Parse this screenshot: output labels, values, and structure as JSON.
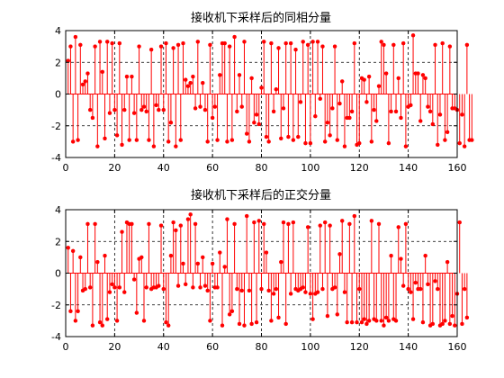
{
  "chart_data": [
    {
      "type": "stem",
      "title": "接收机下采样后的同相分量",
      "xlim": [
        0,
        160
      ],
      "ylim": [
        -4,
        4
      ],
      "xticks": [
        "0",
        "20",
        "40",
        "60",
        "80",
        "100",
        "120",
        "140",
        "160"
      ],
      "yticks": [
        "4",
        "2",
        "0",
        "-2",
        "-4"
      ],
      "grid": true,
      "grid_style": "dashed",
      "stem_color": "#ff0000",
      "frame_color": "#000000",
      "values": [
        2.1,
        3.0,
        -3.0,
        3.6,
        -2.9,
        3.1,
        0.6,
        0.8,
        1.3,
        -1.0,
        -1.5,
        3.0,
        -3.3,
        3.3,
        1.4,
        -2.8,
        3.3,
        -1.2,
        3.2,
        -1.0,
        -2.6,
        3.2,
        -3.2,
        -1.0,
        1.1,
        -2.9,
        1.1,
        -1.2,
        -2.9,
        3.0,
        -1.0,
        -0.8,
        -1.1,
        -2.9,
        2.8,
        -3.3,
        -0.7,
        -1.0,
        3.0,
        -1.0,
        3.2,
        -3.0,
        -1.8,
        2.9,
        -3.3,
        3.1,
        -2.9,
        3.2,
        0.9,
        0.5,
        0.7,
        1.1,
        -0.9,
        3.3,
        -0.8,
        0.7,
        -1.0,
        -3.0,
        3.1,
        -1.5,
        -0.8,
        -2.9,
        1.2,
        3.2,
        3.2,
        -3.0,
        3.0,
        -2.9,
        3.6,
        -1.1,
        1.2,
        -0.8,
        3.3,
        -2.5,
        -3.0,
        1.0,
        -1.8,
        -1.3,
        -1.9,
        0.4,
        3.3,
        -2.7,
        -3.0,
        3.2,
        -1.1,
        0.3,
        2.9,
        -2.8,
        -0.9,
        3.2,
        -2.7,
        3.2,
        -2.9,
        2.8,
        -2.7,
        -0.5,
        3.3,
        -3.1,
        3.1,
        -3.1,
        3.3,
        -1.4,
        3.3,
        -0.3,
        3.0,
        -3.0,
        -1.8,
        -2.6,
        -0.9,
        3.0,
        -2.9,
        -0.6,
        0.8,
        -3.3,
        -1.5,
        -1.5,
        -1.1,
        3.2,
        -3.2,
        -3.1,
        1.0,
        0.9,
        -0.5,
        1.1,
        -3.0,
        -1.0,
        -1.7,
        0.5,
        3.3,
        3.1,
        1.3,
        -3.1,
        -1.1,
        3.1,
        -1.1,
        1.0,
        -1.5,
        3.2,
        -3.3,
        -0.8,
        -0.7,
        3.7,
        1.3,
        1.3,
        -1.7,
        1.2,
        1.0,
        -0.8,
        -1.1,
        -1.9,
        3.1,
        -3.2,
        -1.3,
        3.2,
        -2.9,
        -2.4,
        3.0,
        -0.9,
        -0.9,
        -1.0,
        -3.1,
        -1.3,
        -3.3,
        3.1,
        -2.9,
        -2.9
      ],
      "title_name": "in-phase-chart"
    },
    {
      "type": "stem",
      "title": "接收机下采样后的正交分量",
      "xlim": [
        0,
        160
      ],
      "ylim": [
        -4,
        4
      ],
      "xticks": [
        "0",
        "20",
        "40",
        "60",
        "80",
        "100",
        "120",
        "140",
        "160"
      ],
      "yticks": [
        "4",
        "2",
        "0",
        "-2",
        "-4"
      ],
      "grid": true,
      "grid_style": "dashed",
      "stem_color": "#ff0000",
      "frame_color": "#000000",
      "values": [
        1.6,
        -2.4,
        1.4,
        -3.0,
        -2.4,
        1.0,
        -1.1,
        -1.0,
        3.1,
        -0.9,
        -3.3,
        3.1,
        0.7,
        -3.1,
        -3.3,
        1.1,
        -2.9,
        -1.2,
        -0.7,
        -0.9,
        -3.0,
        -0.9,
        2.6,
        -1.2,
        3.2,
        3.1,
        3.1,
        -0.4,
        -2.5,
        0.9,
        1.0,
        -3.0,
        -0.9,
        3.1,
        -1.0,
        -0.9,
        -0.9,
        -0.8,
        3.0,
        -1.0,
        -3.1,
        -3.3,
        1.1,
        3.2,
        2.7,
        -0.8,
        3.0,
        0.6,
        -0.7,
        3.4,
        3.7,
        -0.9,
        3.1,
        0.6,
        -0.9,
        1.0,
        -0.8,
        -1.1,
        -3.0,
        0.6,
        -0.9,
        -0.9,
        1.3,
        -3.3,
        0.4,
        3.4,
        -2.6,
        -2.4,
        3.1,
        -1.0,
        -3.2,
        -1.1,
        -3.3,
        3.6,
        -1.1,
        -3.2,
        3.2,
        -3.1,
        3.3,
        -1.0,
        3.1,
        1.3,
        -1.1,
        -3.0,
        -1.3,
        -1.0,
        -2.8,
        0.7,
        3.2,
        -3.2,
        3.1,
        -1.3,
        3.2,
        -1.0,
        -1.1,
        -1.0,
        -0.9,
        -1.2,
        2.9,
        -1.3,
        -2.9,
        -1.3,
        -1.2,
        3.0,
        -1.0,
        3.2,
        -2.7,
        3.0,
        -1.0,
        -0.9,
        -2.6,
        1.2,
        3.3,
        -1.2,
        -3.1,
        3.1,
        -3.1,
        3.6,
        -3.1,
        -1.0,
        -3.1,
        -2.9,
        -3.2,
        -3.0,
        3.3,
        -2.9,
        -3.0,
        3.1,
        -3.0,
        -3.3,
        -2.8,
        -3.0,
        1.1,
        -2.9,
        -3.0,
        2.9,
        0.9,
        -0.8,
        3.1,
        -1.0,
        -1.2,
        -2.9,
        -0.6,
        -1.0,
        -1.0,
        -3.1,
        1.1,
        -0.7,
        -3.3,
        -3.2,
        -0.5,
        -1.0,
        -3.3,
        -3.2,
        -3.0,
        0.7,
        -3.2,
        -2.7,
        -3.3,
        -1.3,
        3.2,
        -3.2,
        -1.0,
        -2.8
      ],
      "title_name": "quadrature-chart"
    }
  ]
}
